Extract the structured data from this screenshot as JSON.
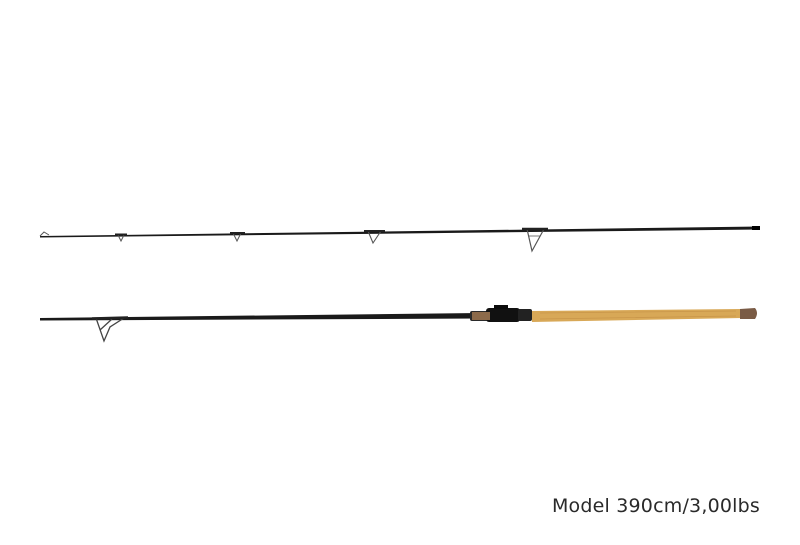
{
  "caption": {
    "text": "Model 390cm/3,00lbs"
  },
  "colors": {
    "blank": "#1a1a1a",
    "cork": "#d8a857",
    "cork_dark": "#8c6a4a",
    "guide": "#555555",
    "caption": "#2a2a2a"
  },
  "parts": [
    {
      "name": "tip-section",
      "guides": 5
    },
    {
      "name": "butt-section",
      "guides": 1,
      "handle": "cork"
    }
  ]
}
